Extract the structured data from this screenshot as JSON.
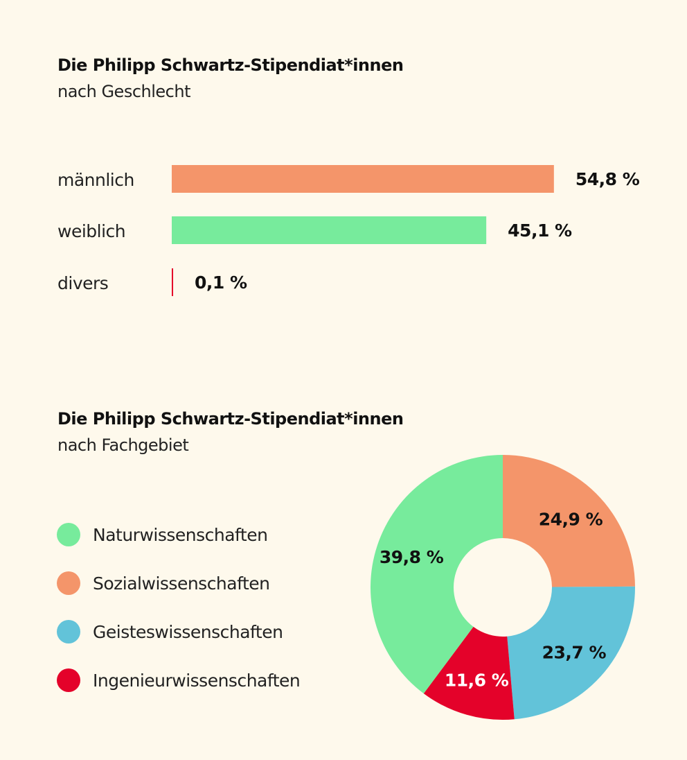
{
  "chart_data": [
    {
      "type": "bar",
      "orientation": "horizontal",
      "title": "Die Philipp Schwartz-Stipendiat*innen",
      "subtitle": "nach Geschlecht",
      "categories": [
        "männlich",
        "weiblich",
        "divers"
      ],
      "values": [
        54.8,
        45.1,
        0.1
      ],
      "value_labels": [
        "54,8 %",
        "45,1 %",
        "0,1 %"
      ],
      "colors": [
        "#f4956a",
        "#77eb9c",
        "#e4022a"
      ],
      "unit": "%",
      "grid": false
    },
    {
      "type": "pie",
      "donut": true,
      "title": "Die Philipp Schwartz-Stipendiat*innen",
      "subtitle": "nach Fachgebiet",
      "legend": [
        "Naturwissenschaften",
        "Sozialwissenschaften",
        "Geisteswissenschaften",
        "Ingenieurwissenschaften"
      ],
      "legend_placement": "left",
      "slices": [
        {
          "name": "Sozialwissenschaften",
          "value": 24.9,
          "label": "24,9 %",
          "color": "#f4956a",
          "label_color": "#111111"
        },
        {
          "name": "Geisteswissenschaften",
          "value": 23.7,
          "label": "23,7 %",
          "color": "#62c3d9",
          "label_color": "#111111"
        },
        {
          "name": "Ingenieurwissenschaften",
          "value": 11.6,
          "label": "11,6 %",
          "color": "#e4022a",
          "label_color": "#ffffff"
        },
        {
          "name": "Naturwissenschaften",
          "value": 39.8,
          "label": "39,8 %",
          "color": "#77eb9c",
          "label_color": "#111111"
        }
      ],
      "legend_colors": [
        "#77eb9c",
        "#f4956a",
        "#62c3d9",
        "#e4022a"
      ]
    }
  ],
  "background": "#fef9ec"
}
